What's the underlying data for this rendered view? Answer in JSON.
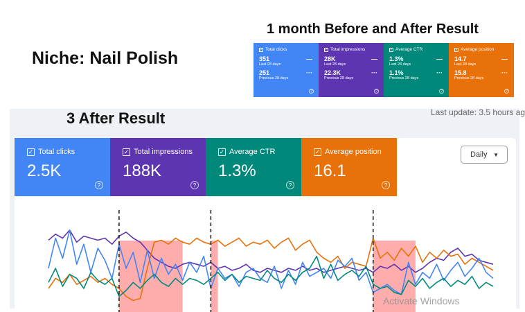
{
  "headline": "Niche: Nail Polish",
  "comparison_title": "1 month Before and After Result",
  "comparison_cards": [
    {
      "label": "Total clicks",
      "current": "351",
      "current_caption": "Last 28 days",
      "previous": "251",
      "previous_caption": "Previous 28 days",
      "color": "#4285f4"
    },
    {
      "label": "Total impressions",
      "current": "28K",
      "current_caption": "Last 28 days",
      "previous": "22.3K",
      "previous_caption": "Previous 28 days",
      "color": "#5e35b1"
    },
    {
      "label": "Average CTR",
      "current": "1.3%",
      "current_caption": "Last 28 days",
      "previous": "1.1%",
      "previous_caption": "Previous 28 days",
      "color": "#00897b"
    },
    {
      "label": "Average position",
      "current": "14.7",
      "current_caption": "Last 28 days",
      "previous": "15.8",
      "previous_caption": "Previous 28 days",
      "color": "#e8710a"
    }
  ],
  "after_title": "3 After Result",
  "last_update": "Last update: 3.5 hours ag",
  "metric_cards": [
    {
      "label": "Total clicks",
      "value": "2.5K",
      "color": "#4285f4"
    },
    {
      "label": "Total impressions",
      "value": "188K",
      "color": "#5e35b1"
    },
    {
      "label": "Average CTR",
      "value": "1.3%",
      "color": "#00897b"
    },
    {
      "label": "Average position",
      "value": "16.1",
      "color": "#e8710a"
    }
  ],
  "granularity": "Daily",
  "watermark": "Activate Windows",
  "chart_data": {
    "type": "line",
    "grid": false,
    "ylim": [
      0,
      100
    ],
    "markers_at_index": [
      10,
      23,
      46
    ],
    "highlight_ranges": [
      [
        10,
        19
      ],
      [
        23,
        24
      ],
      [
        46,
        52
      ]
    ],
    "series": [
      {
        "metric": "Total impressions",
        "color": "#5e35b1",
        "values": [
          68,
          74,
          70,
          78,
          66,
          72,
          70,
          68,
          70,
          64,
          72,
          76,
          70,
          66,
          58,
          50,
          46,
          42,
          40,
          44,
          46,
          44,
          42,
          46,
          40,
          42,
          38,
          40,
          44,
          38,
          36,
          40,
          38,
          36,
          40,
          38,
          42,
          38,
          40,
          36,
          38,
          40,
          42,
          40,
          38,
          40,
          36,
          42,
          40,
          44,
          38,
          42,
          36,
          40,
          46,
          50,
          48,
          56,
          60,
          52,
          54,
          48,
          46,
          44
        ]
      },
      {
        "metric": "Average position",
        "color": "#e8710a",
        "values": [
          20,
          30,
          26,
          34,
          24,
          28,
          32,
          26,
          30,
          24,
          20,
          12,
          8,
          10,
          40,
          66,
          68,
          64,
          70,
          66,
          64,
          70,
          66,
          64,
          68,
          62,
          66,
          70,
          62,
          66,
          64,
          68,
          60,
          66,
          70,
          58,
          64,
          68,
          56,
          50,
          46,
          52,
          40,
          46,
          44,
          42,
          70,
          50,
          56,
          48,
          60,
          52,
          62,
          46,
          56,
          50,
          58,
          52,
          54,
          44,
          50,
          46,
          42,
          38
        ]
      },
      {
        "metric": "Total clicks",
        "color": "#4285f4",
        "values": [
          40,
          70,
          50,
          78,
          44,
          64,
          36,
          60,
          48,
          30,
          64,
          40,
          56,
          26,
          58,
          30,
          50,
          34,
          44,
          28,
          46,
          36,
          52,
          20,
          40,
          30,
          34,
          22,
          36,
          40,
          30,
          26,
          42,
          20,
          38,
          24,
          46,
          32,
          36,
          40,
          30,
          48,
          42,
          50,
          28,
          36,
          16,
          20,
          24,
          18,
          14,
          46,
          24,
          36,
          30,
          44,
          28,
          38,
          46,
          32,
          40,
          50,
          36,
          30
        ]
      },
      {
        "metric": "Average CTR",
        "color": "#00897b",
        "values": [
          26,
          40,
          22,
          34,
          30,
          20,
          36,
          28,
          24,
          30,
          12,
          18,
          26,
          20,
          28,
          34,
          26,
          22,
          30,
          24,
          30,
          28,
          24,
          30,
          36,
          28,
          34,
          26,
          32,
          30,
          28,
          38,
          30,
          26,
          34,
          28,
          36,
          40,
          52,
          30,
          44,
          28,
          34,
          38,
          32,
          42,
          24,
          20,
          22,
          16,
          14,
          28,
          22,
          30,
          20,
          26,
          30,
          22,
          28,
          24,
          32,
          20,
          26,
          22
        ]
      }
    ]
  }
}
